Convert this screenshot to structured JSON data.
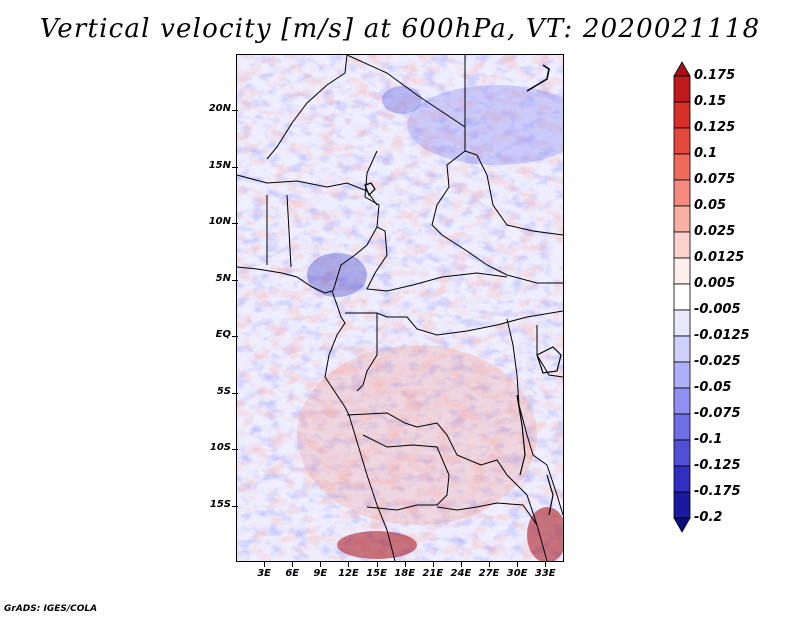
{
  "title": "Vertical velocity [m/s] at 600hPa, VT: 2020021118",
  "footer": "GrADS: IGES/COLA",
  "map": {
    "lat_labels": [
      "20N",
      "15N",
      "10N",
      "5N",
      "EQ",
      "5S",
      "10S",
      "15S"
    ],
    "lon_labels": [
      "3E",
      "6E",
      "9E",
      "12E",
      "15E",
      "18E",
      "21E",
      "24E",
      "27E",
      "30E",
      "33E"
    ],
    "lon_range": [
      0,
      35
    ],
    "lat_range": [
      -20,
      25
    ]
  },
  "colorbar": {
    "levels": [
      "0.175",
      "0.15",
      "0.125",
      "0.1",
      "0.075",
      "0.05",
      "0.025",
      "0.0125",
      "0.005",
      "-0.005",
      "-0.0125",
      "-0.025",
      "-0.05",
      "-0.075",
      "-0.1",
      "-0.125",
      "-0.175",
      "-0.2"
    ],
    "colors": [
      "#a50f15",
      "#c01a1e",
      "#d63028",
      "#e44a3c",
      "#ef6b5b",
      "#f38c7f",
      "#f8b0a5",
      "#fcd3cc",
      "#fff0ed",
      "#ffffff",
      "#e8e8ff",
      "#cfcffe",
      "#b0b0fa",
      "#9090f2",
      "#6e6ee6",
      "#5050d6",
      "#3030c0",
      "#1a1aa0",
      "#0c0c80"
    ]
  }
}
